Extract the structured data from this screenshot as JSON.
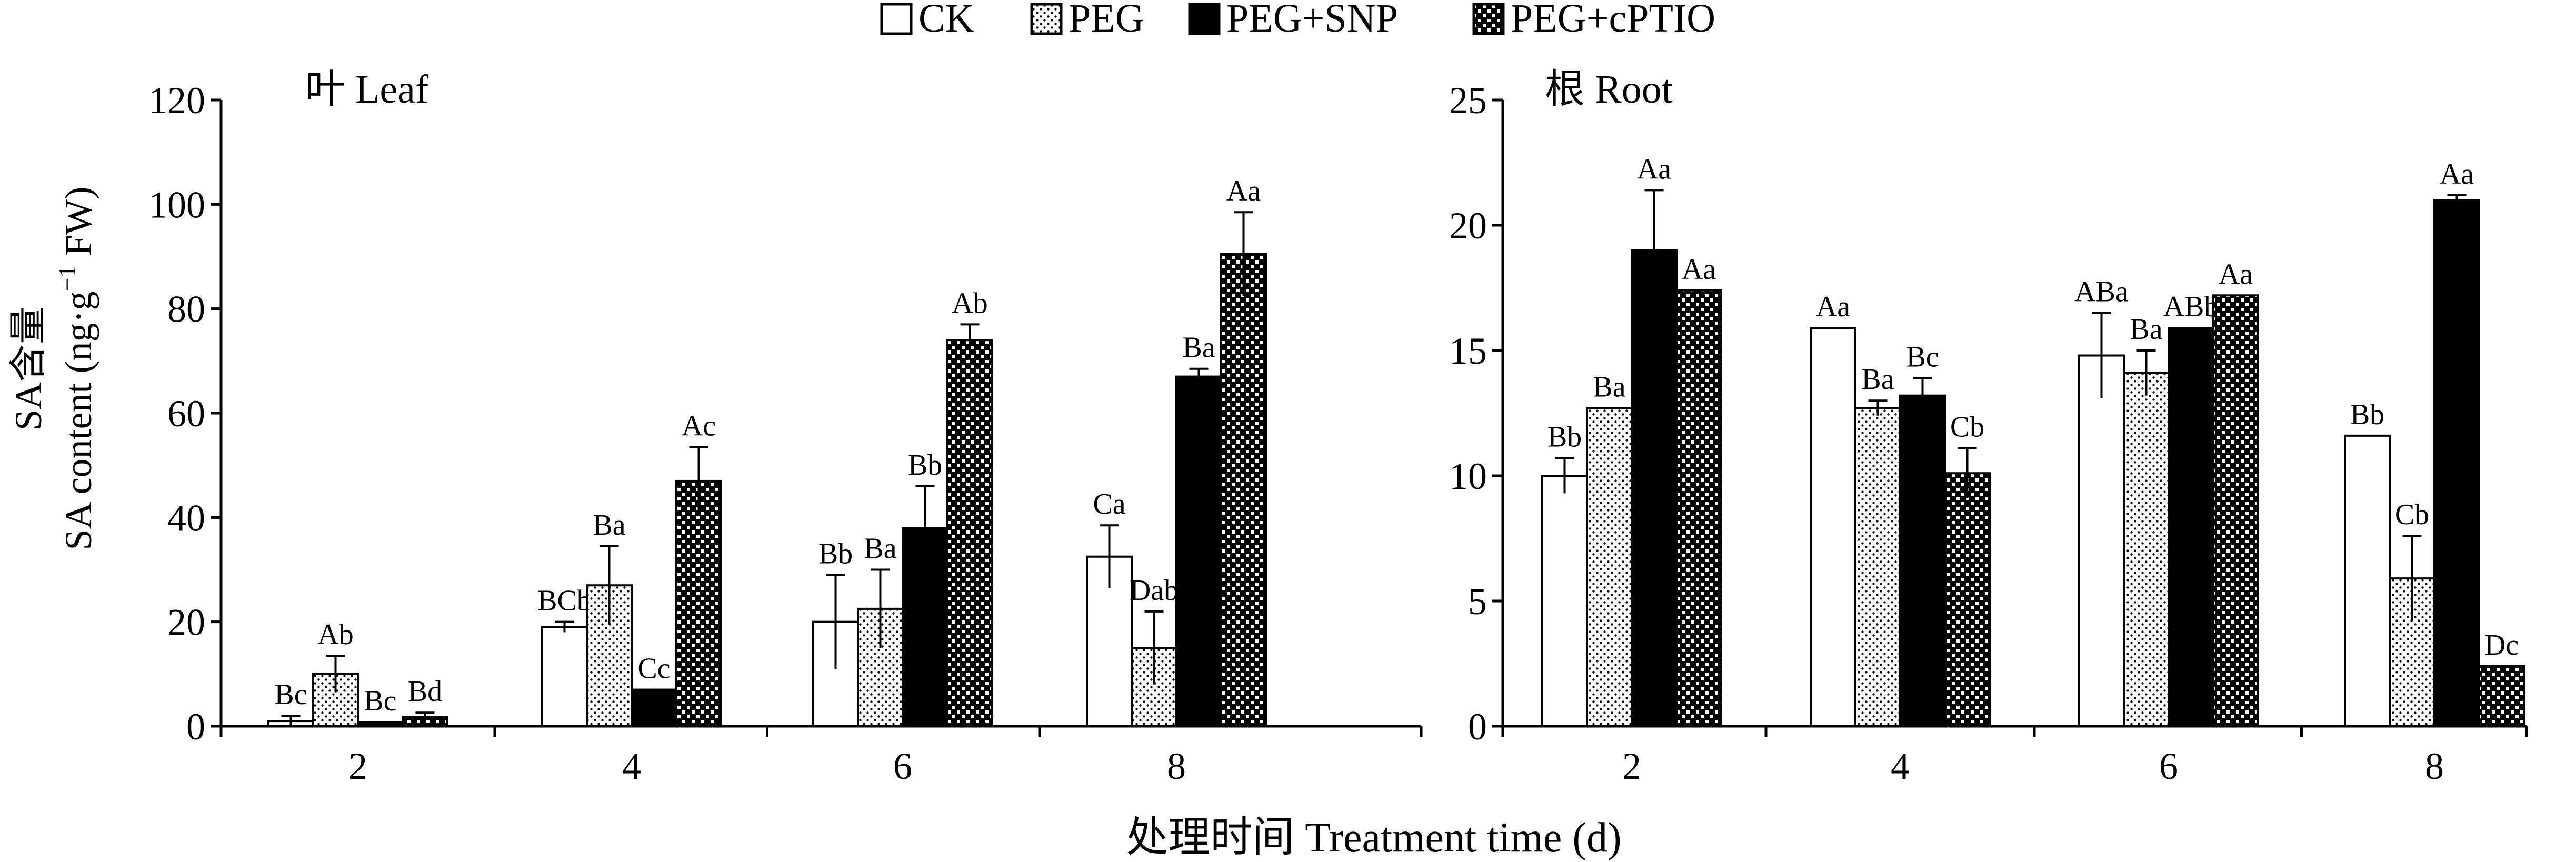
{
  "figure": {
    "xlabel": "处理时间 Treatment time (d)",
    "ylabel_line1": "SA含量",
    "ylabel_line2": "SA content (ng·g",
    "ylabel_sup": "−1",
    "ylabel_end": " FW)"
  },
  "legend": {
    "position": "top-center",
    "items": [
      {
        "label": "CK",
        "pattern": "white"
      },
      {
        "label": "PEG",
        "pattern": "dots"
      },
      {
        "label": "PEG+SNP",
        "pattern": "black"
      },
      {
        "label": "PEG+cPTIO",
        "pattern": "checker"
      }
    ]
  },
  "chart_data": [
    {
      "type": "bar",
      "title": "叶 Leaf",
      "categories": [
        "2",
        "4",
        "6",
        "8"
      ],
      "ylim": [
        0,
        120
      ],
      "yticks": [
        0,
        20,
        40,
        60,
        80,
        100,
        120
      ],
      "series": [
        {
          "name": "CK",
          "values": [
            1,
            19,
            20,
            32.5
          ],
          "errors": [
            1,
            1,
            9,
            6
          ],
          "labels": [
            "Bc",
            "BCb",
            "Bb",
            "Ca"
          ]
        },
        {
          "name": "PEG",
          "values": [
            10,
            27,
            22.5,
            15
          ],
          "errors": [
            3.5,
            7.5,
            7.5,
            7
          ],
          "labels": [
            "Ab",
            "Ba",
            "Ba",
            "Dab"
          ]
        },
        {
          "name": "PEG+SNP",
          "values": [
            0.8,
            7,
            38,
            67
          ],
          "errors": [
            0,
            0,
            8,
            1.5
          ],
          "labels": [
            "Bc",
            "Cc",
            "Bb",
            "Ba"
          ]
        },
        {
          "name": "PEG+cPTIO",
          "values": [
            1.8,
            47,
            74,
            90.5
          ],
          "errors": [
            0.8,
            6.5,
            3,
            8
          ],
          "labels": [
            "Bd",
            "Ac",
            "Ab",
            "Aa"
          ]
        }
      ]
    },
    {
      "type": "bar",
      "title": "根 Root",
      "categories": [
        "2",
        "4",
        "6",
        "8"
      ],
      "ylim": [
        0,
        25
      ],
      "yticks": [
        0,
        5,
        10,
        15,
        20,
        25
      ],
      "series": [
        {
          "name": "CK",
          "values": [
            10,
            15.9,
            14.8,
            11.6
          ],
          "errors": [
            0.7,
            0,
            1.7,
            0
          ],
          "labels": [
            "Bb",
            "Aa",
            "ABa",
            "Bb"
          ]
        },
        {
          "name": "PEG",
          "values": [
            12.7,
            12.7,
            14.1,
            5.9
          ],
          "errors": [
            0,
            0.3,
            0.9,
            1.7
          ],
          "labels": [
            "Ba",
            "Ba",
            "Ba",
            "Cb"
          ]
        },
        {
          "name": "PEG+SNP",
          "values": [
            19,
            13.2,
            15.9,
            21
          ],
          "errors": [
            2.4,
            0.7,
            0,
            0.2
          ],
          "labels": [
            "Aa",
            "Bc",
            "ABb",
            "Aa"
          ]
        },
        {
          "name": "PEG+cPTIO",
          "values": [
            17.4,
            10.1,
            17.2,
            2.4
          ],
          "errors": [
            0,
            1,
            0,
            0
          ],
          "labels": [
            "Aa",
            "Cb",
            "Aa",
            "Dc"
          ]
        }
      ]
    }
  ]
}
